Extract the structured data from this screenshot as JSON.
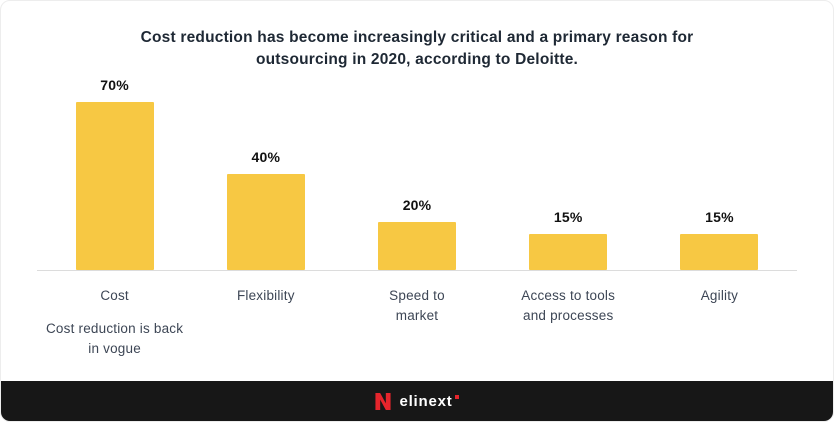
{
  "title": "Cost reduction has become increasingly critical and a primary reason for outsourcing in 2020, according to Deloitte.",
  "chart_data": {
    "type": "bar",
    "title": "Cost reduction has become increasingly critical and a primary reason for outsourcing in 2020, according to Deloitte.",
    "categories": [
      "Cost",
      "Flexibility",
      "Speed to market",
      "Access to tools and processes",
      "Agility"
    ],
    "values": [
      70,
      40,
      20,
      15,
      15
    ],
    "value_labels": [
      "70%",
      "40%",
      "20%",
      "15%",
      "15%"
    ],
    "sub_labels": [
      "Cost reduction is back in vogue",
      "",
      "",
      "",
      ""
    ],
    "xlabel": "",
    "ylabel": "",
    "ylim": [
      0,
      75
    ],
    "grid": false,
    "legend": false,
    "bar_color": "#F7C843"
  },
  "colors": {
    "title_text": "#1E2834",
    "category_text": "#3D4655",
    "value_text": "#111111",
    "baseline": "#DCDCDC",
    "footer_bg": "#171717",
    "accent_red": "#E5252C"
  },
  "footer": {
    "brand": "elinext"
  }
}
